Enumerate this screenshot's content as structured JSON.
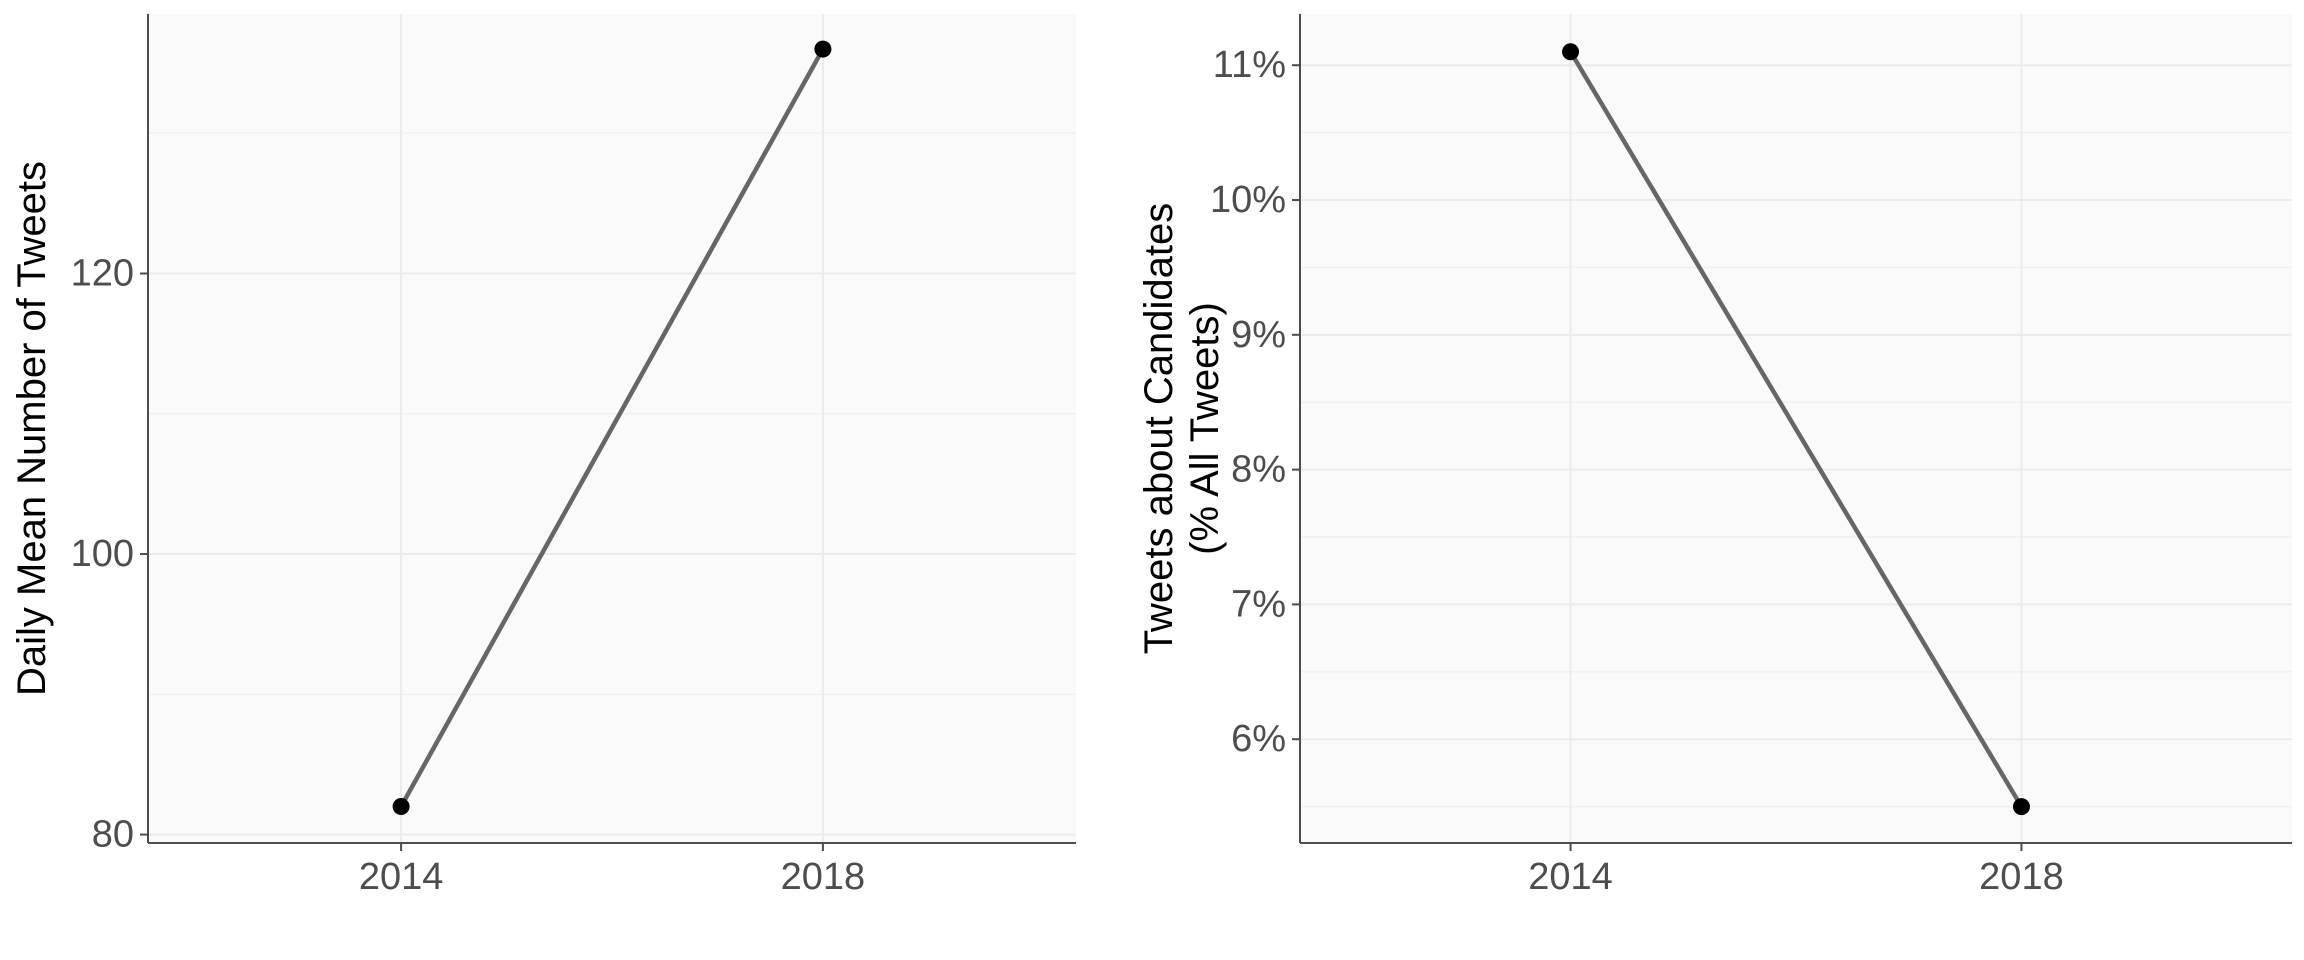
{
  "chart_data": [
    {
      "type": "line",
      "x": [
        "2014",
        "2018"
      ],
      "series": [
        {
          "values": [
            82,
            136
          ]
        }
      ],
      "xlabel": "",
      "ylabel": "Daily Mean Number of Tweets",
      "ylabel_lines": [
        "Daily Mean Number of Tweets"
      ],
      "yticks": [
        80,
        100,
        120
      ],
      "ytick_labels": [
        "80",
        "100",
        "120"
      ],
      "ylim": [
        79.4,
        138.5
      ],
      "grid": true,
      "colors": {
        "line": "#666666",
        "point": "#000000",
        "panel_bg": "#fafafa"
      }
    },
    {
      "type": "line",
      "x": [
        "2014",
        "2018"
      ],
      "series": [
        {
          "values": [
            11.1,
            5.5
          ]
        }
      ],
      "xlabel": "",
      "ylabel": "Tweets about Candidates (% All Tweets)",
      "ylabel_lines": [
        "Tweets about Candidates",
        "(% All Tweets)"
      ],
      "yticks": [
        6,
        7,
        8,
        9,
        10,
        11
      ],
      "ytick_labels": [
        "6%",
        "7%",
        "8%",
        "9%",
        "10%",
        "11%"
      ],
      "ylim": [
        5.23,
        11.38
      ],
      "grid": true,
      "colors": {
        "line": "#666666",
        "point": "#000000",
        "panel_bg": "#fafafa"
      }
    }
  ]
}
